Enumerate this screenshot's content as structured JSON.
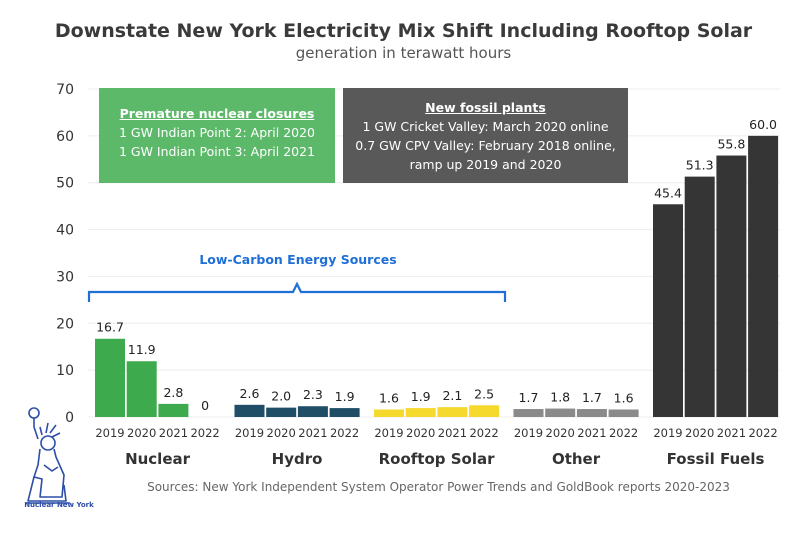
{
  "title": "Downstate New York Electricity Mix Shift Including Rooftop Solar",
  "subtitle": "generation in terawatt hours",
  "annotations": {
    "nuclear_box": {
      "heading": "Premature nuclear closures",
      "lines": [
        "1 GW Indian Point 2: April 2020",
        "1 GW Indian Point 3: April 2021"
      ],
      "color": "#5cb96a"
    },
    "fossil_box": {
      "heading": "New fossil plants",
      "lines": [
        "1 GW Cricket Valley: March 2020 online",
        "0.7 GW CPV Valley: February 2018 online,",
        "ramp up 2019 and 2020"
      ],
      "color": "#595959"
    },
    "low_carbon_label": "Low-Carbon Energy Sources",
    "low_carbon_color": "#1f6fd6"
  },
  "source": "Sources: New York Independent System Operator Power Trends and GoldBook reports 2020-2023",
  "logo_text": "Nuclear New York",
  "chart_data": {
    "type": "bar",
    "ylim": [
      0,
      70
    ],
    "yticks": [
      0,
      10,
      20,
      30,
      40,
      50,
      60,
      70
    ],
    "years": [
      "2019",
      "2020",
      "2021",
      "2022"
    ],
    "groups": [
      {
        "name": "Nuclear",
        "values": [
          16.7,
          11.9,
          2.8,
          0
        ],
        "labels": [
          "16.7",
          "11.9",
          "2.8",
          "0"
        ],
        "color": "#3daa4e"
      },
      {
        "name": "Hydro",
        "values": [
          2.6,
          2.0,
          2.3,
          1.9
        ],
        "labels": [
          "2.6",
          "2.0",
          "2.3",
          "1.9"
        ],
        "color": "#1f4e66"
      },
      {
        "name": "Rooftop Solar",
        "values": [
          1.6,
          1.9,
          2.1,
          2.5
        ],
        "labels": [
          "1.6",
          "1.9",
          "2.1",
          "2.5"
        ],
        "color": "#f5d92c"
      },
      {
        "name": "Other",
        "values": [
          1.7,
          1.8,
          1.7,
          1.6
        ],
        "labels": [
          "1.7",
          "1.8",
          "1.7",
          "1.6"
        ],
        "color": "#8a8a8a"
      },
      {
        "name": "Fossil Fuels",
        "values": [
          45.4,
          51.3,
          55.8,
          60.0
        ],
        "labels": [
          "45.4",
          "51.3",
          "55.8",
          "60.0"
        ],
        "color": "#353535"
      }
    ],
    "grid": true
  }
}
